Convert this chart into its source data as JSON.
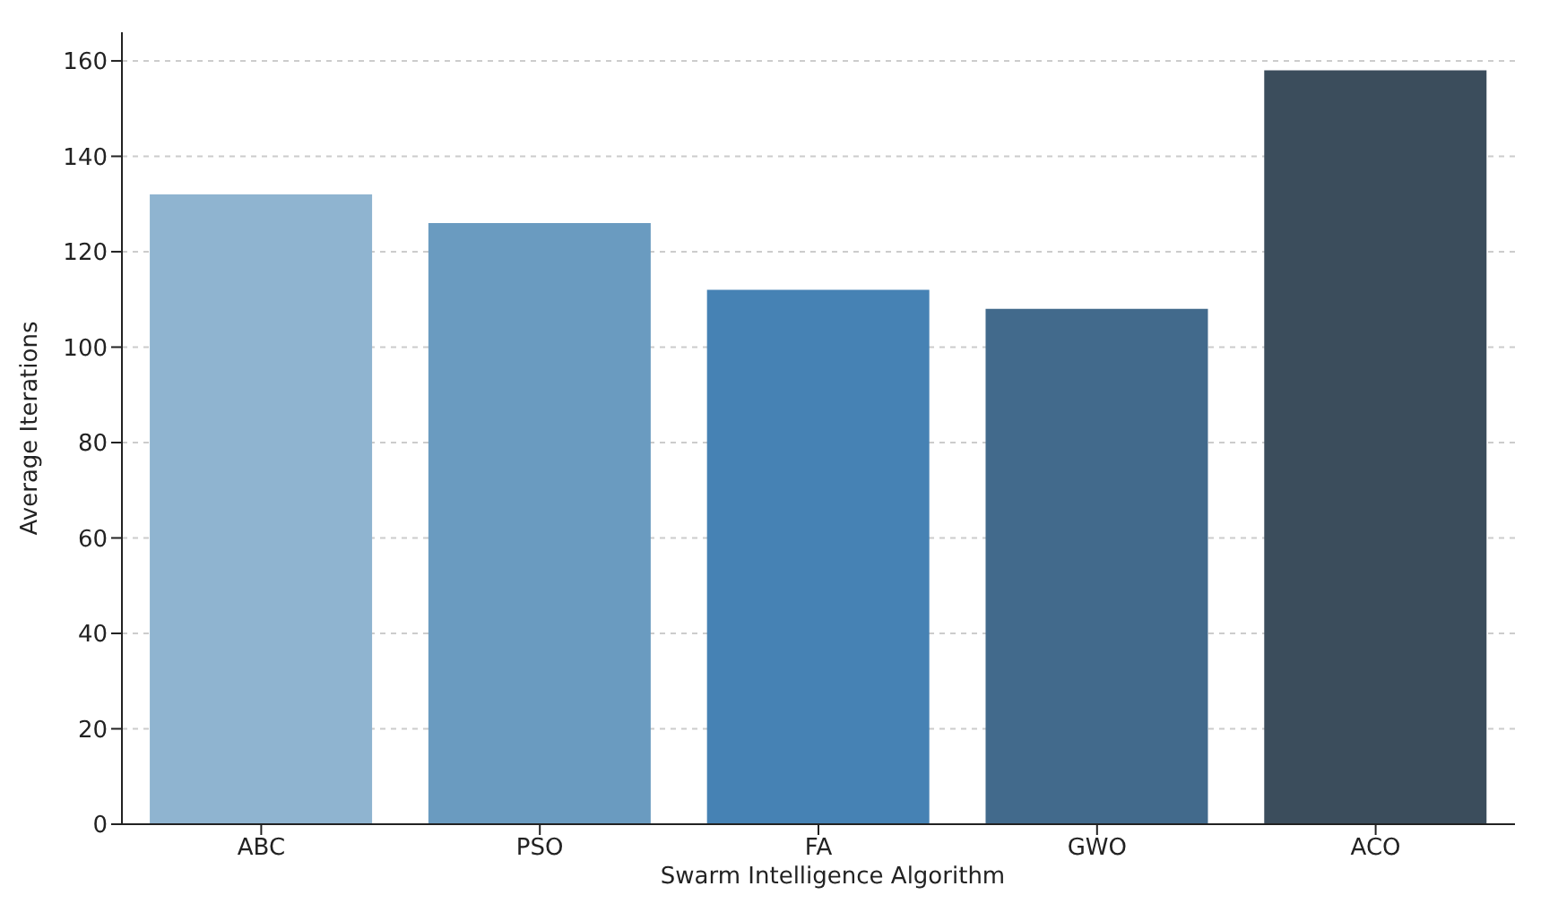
{
  "chart_data": {
    "type": "bar",
    "xlabel": "Swarm Intelligence Algorithm",
    "ylabel": "Average Iterations",
    "categories": [
      "ABC",
      "PSO",
      "FA",
      "GWO",
      "ACO"
    ],
    "values": [
      132,
      126,
      112,
      108,
      158
    ],
    "colors": [
      "#8fb4d0",
      "#6a9bc0",
      "#4682b4",
      "#426a8c",
      "#3b4d5c"
    ],
    "ylim": [
      0,
      166
    ],
    "yticks": [
      0,
      20,
      40,
      60,
      80,
      100,
      120,
      140,
      160
    ],
    "grid": "y"
  }
}
